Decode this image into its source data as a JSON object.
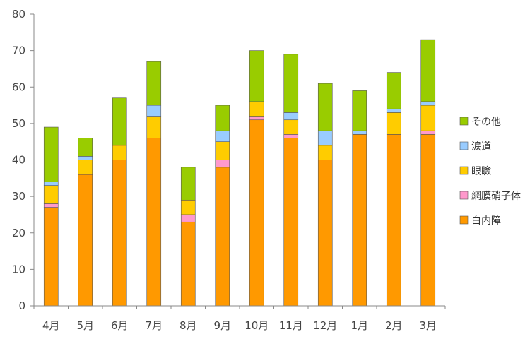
{
  "chart_data": {
    "type": "bar",
    "stacked": true,
    "categories": [
      "4月",
      "5月",
      "6月",
      "7月",
      "8月",
      "9月",
      "10月",
      "11月",
      "12月",
      "1月",
      "2月",
      "3月"
    ],
    "series": [
      {
        "name": "白内障",
        "color": "#ff9900",
        "values": [
          27,
          36,
          40,
          46,
          23,
          38,
          51,
          46,
          40,
          47,
          47,
          47
        ]
      },
      {
        "name": "網膜硝子体",
        "color": "#ff99cc",
        "values": [
          1,
          0,
          0,
          0,
          2,
          2,
          1,
          1,
          0,
          0,
          0,
          1
        ]
      },
      {
        "name": "眼瞼",
        "color": "#ffcc00",
        "values": [
          5,
          4,
          4,
          6,
          4,
          5,
          4,
          4,
          4,
          0,
          6,
          7
        ]
      },
      {
        "name": "涙道",
        "color": "#99ccff",
        "values": [
          1,
          1,
          0,
          3,
          0,
          3,
          0,
          2,
          4,
          1,
          1,
          1
        ]
      },
      {
        "name": "その他",
        "color": "#99cc00",
        "values": [
          15,
          5,
          13,
          12,
          9,
          7,
          14,
          16,
          13,
          11,
          10,
          17
        ]
      }
    ],
    "ylim": [
      0,
      80
    ],
    "yticks": [
      "0",
      "10",
      "20",
      "30",
      "40",
      "50",
      "60",
      "70",
      "80"
    ],
    "legend_position": "right",
    "grid": false
  }
}
